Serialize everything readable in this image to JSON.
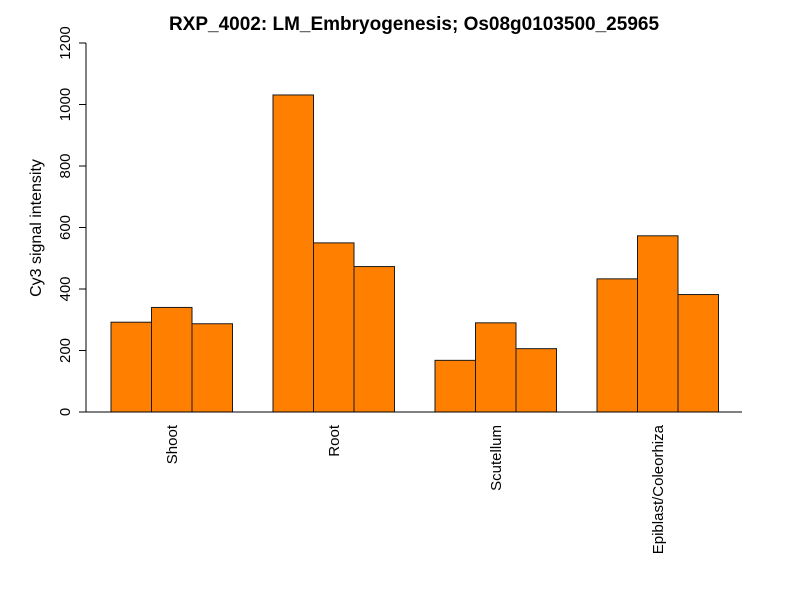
{
  "chart_data": {
    "type": "bar",
    "title": "RXP_4002: LM_Embryogenesis; Os08g0103500_25965",
    "xlabel": "",
    "ylabel": "Cy3 signal intensity",
    "ylim": [
      0,
      1200
    ],
    "yticks": [
      0,
      200,
      400,
      600,
      800,
      1000,
      1200
    ],
    "grid": false,
    "legend": "none",
    "bar_color": "#ff7f00",
    "edge_color": "#1a1a1a",
    "groups": [
      {
        "label": "Shoot",
        "values": [
          292,
          340,
          287
        ]
      },
      {
        "label": "Root",
        "values": [
          1031,
          550,
          473
        ]
      },
      {
        "label": "Scutellum",
        "values": [
          168,
          290,
          206
        ]
      },
      {
        "label": "Epiblast/Coleorhiza",
        "values": [
          433,
          573,
          382
        ]
      }
    ]
  }
}
